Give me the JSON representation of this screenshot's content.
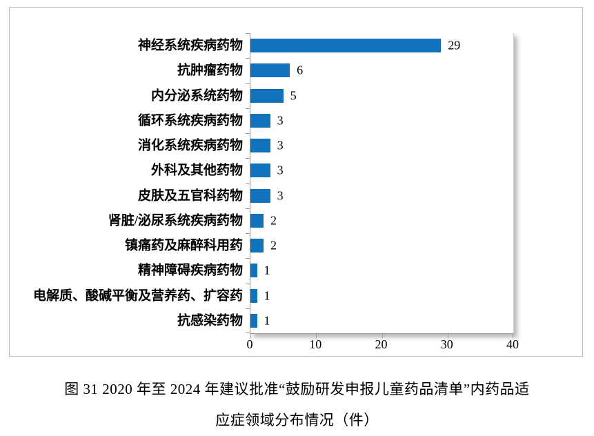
{
  "figure": {
    "caption_line1": "图 31  2020 年至 2024 年建议批准“鼓励研发申报儿童药品清单”内药品适",
    "caption_line2": "应症领域分布情况（件）"
  },
  "colors": {
    "bar": "#1172bc",
    "axis": "#9b9b9b",
    "frame_border": "#bdbdbd",
    "text": "#000000"
  },
  "chart_data": {
    "type": "bar",
    "orientation": "horizontal",
    "title": "",
    "xlabel": "",
    "ylabel": "",
    "categories": [
      "神经系统疾病药物",
      "抗肿瘤药物",
      "内分泌系统药物",
      "循环系统疾病药物",
      "消化系统疾病药物",
      "外科及其他药物",
      "皮肤及五官科药物",
      "肾脏/泌尿系统疾病药物",
      "镇痛药及麻醉科用药",
      "精神障碍疾病药物",
      "电解质、酸碱平衡及营养药、扩容药",
      "抗感染药物"
    ],
    "values": [
      29,
      6,
      5,
      3,
      3,
      3,
      3,
      2,
      2,
      1,
      1,
      1
    ],
    "data_labels": [
      29,
      6,
      5,
      3,
      3,
      3,
      3,
      2,
      2,
      1,
      1,
      1
    ],
    "xlim": [
      0,
      40
    ],
    "xticks": [
      0,
      10,
      20,
      30,
      40
    ],
    "grid": false,
    "legend": false
  }
}
